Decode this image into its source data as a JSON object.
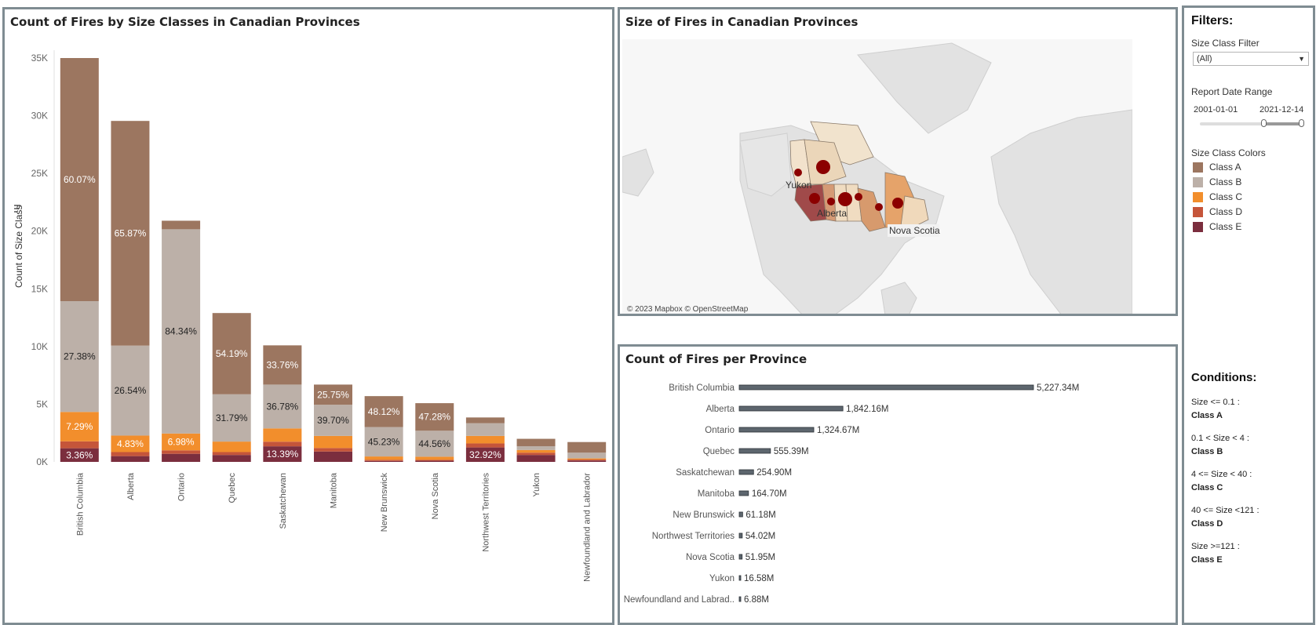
{
  "bar_panel": {
    "title": "Count of Fires by Size Classes in Canadian Provinces"
  },
  "map_panel": {
    "title": "Size of  Fires in Canadian Provinces",
    "labels": {
      "yukon": "Yukon",
      "alberta": "Alberta",
      "nova_scotia": "Nova Scotia"
    },
    "attribution": "© 2023 Mapbox © OpenStreetMap"
  },
  "hbar_panel": {
    "title": "Count of Fires per Province"
  },
  "filters": {
    "title": "Filters:",
    "size_class_filter_label": "Size Class Filter",
    "size_class_filter_value": "(All)",
    "date_range_label": "Report Date Range",
    "date_start": "2001-01-01",
    "date_end": "2021-12-14",
    "date_range_selected_fraction": [
      0.62,
      1.0
    ],
    "colors_label": "Size Class Colors",
    "legend": [
      {
        "name": "Class A",
        "color": "#9c7660"
      },
      {
        "name": "Class B",
        "color": "#bcb0a8"
      },
      {
        "name": "Class C",
        "color": "#f28e2c"
      },
      {
        "name": "Class D",
        "color": "#c5553a"
      },
      {
        "name": "Class E",
        "color": "#7b2e3e"
      }
    ]
  },
  "conditions": {
    "title": "Conditions:",
    "items": [
      {
        "rule": "Size <= 0.1 :",
        "cls": "Class A"
      },
      {
        "rule": "0.1 < Size < 4 :",
        "cls": "Class B"
      },
      {
        "rule": "4 <= Size < 40 :",
        "cls": "Class C"
      },
      {
        "rule": "40 <= Size <121 :",
        "cls": "Class D"
      },
      {
        "rule": "Size >=121 :",
        "cls": "Class E"
      }
    ]
  },
  "chart_data": [
    {
      "type": "bar",
      "stacked": true,
      "title": "Count of Fires by Size Classes in Canadian Provinces",
      "ylabel": "Count of Size Class",
      "ylim": [
        0,
        35000
      ],
      "yticks": [
        "0K",
        "5K",
        "10K",
        "15K",
        "20K",
        "25K",
        "30K",
        "35K"
      ],
      "ytick_values": [
        0,
        5000,
        10000,
        15000,
        20000,
        25000,
        30000,
        35000
      ],
      "categories": [
        "British Columbia",
        "Alberta",
        "Ontario",
        "Quebec",
        "Saskatchewan",
        "Manitoba",
        "New Brunswick",
        "Nova Scotia",
        "Northwest Territories",
        "Yukon",
        "Newfoundland and Labrador"
      ],
      "series": [
        {
          "name": "Class E",
          "color": "#7b2e3e",
          "values": [
            1180,
            500,
            700,
            600,
            1350,
            900,
            80,
            100,
            1250,
            600,
            120
          ],
          "labels": [
            "3.36%",
            "",
            "",
            "",
            "13.39%",
            "",
            "",
            "",
            "32.92%",
            "",
            ""
          ]
        },
        {
          "name": "Class D",
          "color": "#c5553a",
          "values": [
            600,
            350,
            300,
            250,
            400,
            300,
            100,
            80,
            350,
            200,
            80
          ],
          "labels": [
            "",
            "",
            "",
            "",
            "",
            "",
            "",
            "",
            "",
            "",
            ""
          ]
        },
        {
          "name": "Class C",
          "color": "#f28e2c",
          "values": [
            2550,
            1430,
            1460,
            910,
            1150,
            1050,
            290,
            270,
            650,
            230,
            100
          ],
          "labels": [
            "7.29%",
            "4.83%",
            "6.98%",
            "",
            "",
            "",
            "",
            "",
            "",
            "",
            ""
          ]
        },
        {
          "name": "Class B",
          "color": "#bcb0a8",
          "values": [
            9600,
            7800,
            17700,
            4100,
            3800,
            2700,
            2550,
            2250,
            1100,
            330,
            500
          ],
          "labels": [
            "27.38%",
            "26.54%",
            "84.34%",
            "31.79%",
            "36.78%",
            "39.70%",
            "45.23%",
            "44.56%",
            "",
            "",
            ""
          ]
        },
        {
          "name": "Class A",
          "color": "#9c7660",
          "values": [
            21070,
            19470,
            740,
            7040,
            3400,
            1750,
            2680,
            2390,
            500,
            640,
            920
          ],
          "labels": [
            "60.07%",
            "65.87%",
            "",
            "54.19%",
            "33.76%",
            "25.75%",
            "48.12%",
            "47.28%",
            "",
            "",
            ""
          ]
        }
      ]
    },
    {
      "type": "bar",
      "orientation": "horizontal",
      "title": "Count of Fires per Province",
      "categories": [
        "British Columbia",
        "Alberta",
        "Ontario",
        "Quebec",
        "Saskatchewan",
        "Manitoba",
        "New Brunswick",
        "Northwest Territories",
        "Nova Scotia",
        "Yukon",
        "Newfoundland and Labrad.."
      ],
      "values": [
        5227.34,
        1842.16,
        1324.67,
        555.39,
        254.9,
        164.7,
        61.18,
        54.02,
        51.95,
        16.58,
        6.88
      ],
      "labels": [
        "5,227.34M",
        "1,842.16M",
        "1,324.67M",
        "555.39M",
        "254.90M",
        "164.70M",
        "61.18M",
        "54.02M",
        "51.95M",
        "16.58M",
        "6.88M"
      ],
      "color": "#5d666e"
    }
  ]
}
